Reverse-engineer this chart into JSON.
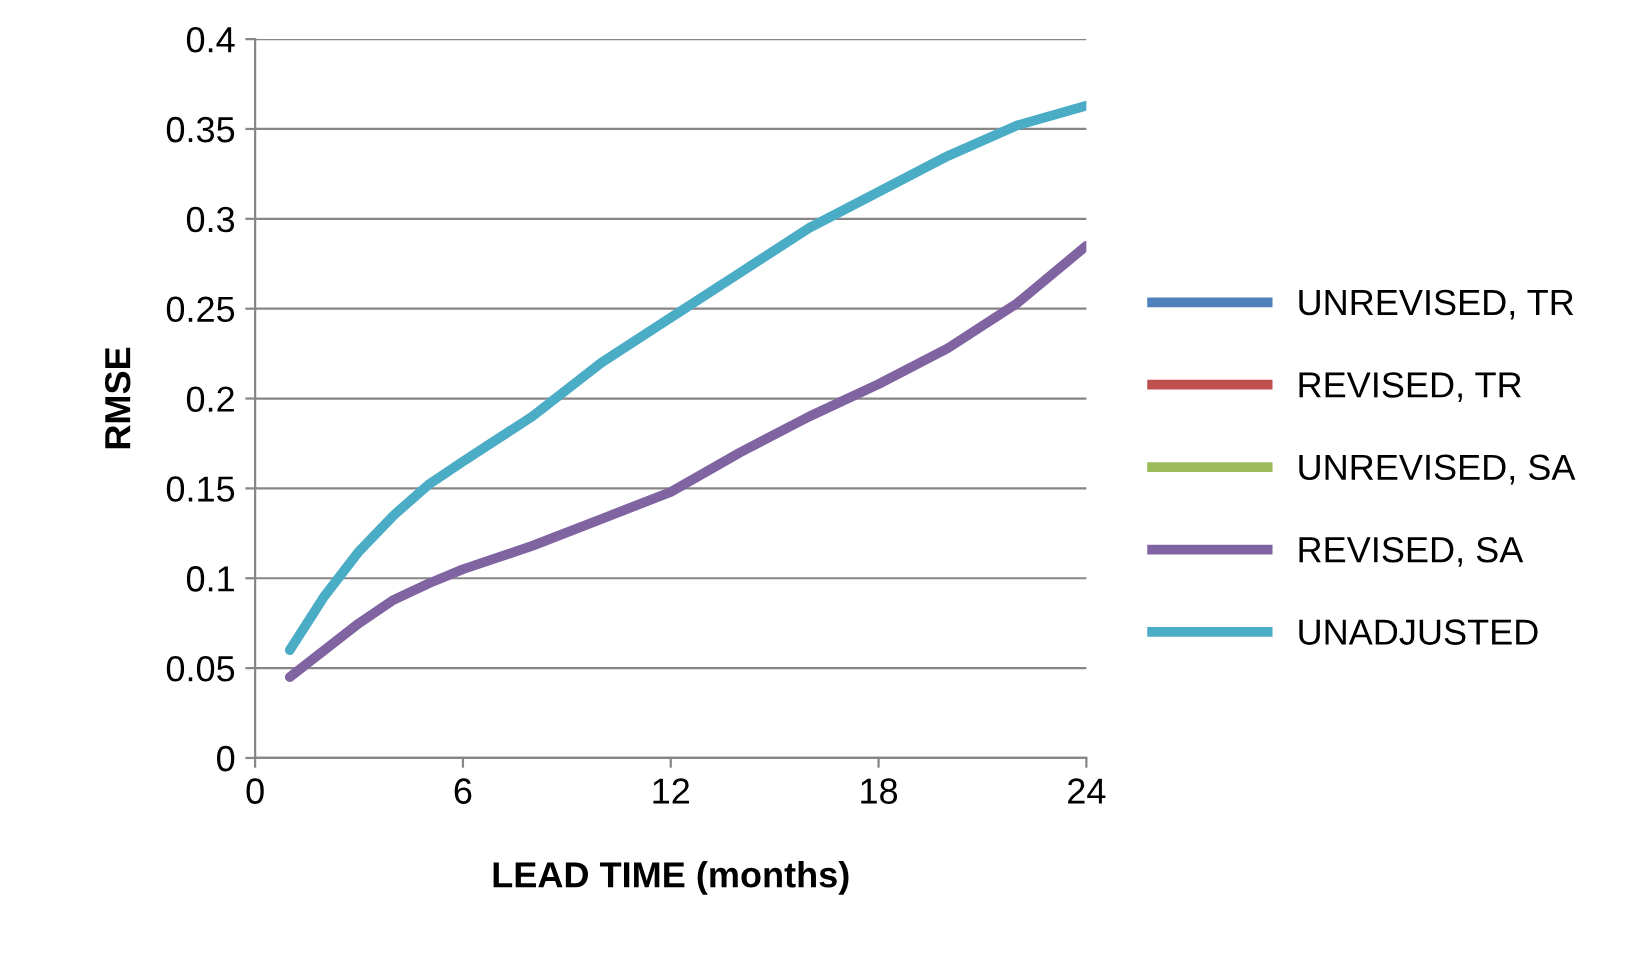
{
  "chart_data": {
    "type": "line",
    "xlabel": "LEAD TIME (months)",
    "ylabel": "RMSE",
    "xlim": [
      0,
      24
    ],
    "xticks": [
      0,
      6,
      12,
      18,
      24
    ],
    "ylim": [
      0,
      0.4
    ],
    "yticks": [
      0,
      0.05,
      0.1,
      0.15,
      0.2,
      0.25,
      0.3,
      0.35,
      0.4
    ],
    "grid": "y",
    "legend": "right",
    "line_style": "solid",
    "marker": "none",
    "x": [
      1,
      2,
      3,
      4,
      5,
      6,
      8,
      10,
      12,
      14,
      16,
      18,
      20,
      22,
      24
    ],
    "series": [
      {
        "name": "UNREVISED, TR",
        "color": "#4f81bd",
        "values": [
          null,
          null,
          null,
          null,
          null,
          null,
          null,
          null,
          null,
          null,
          null,
          null,
          null,
          null,
          null
        ]
      },
      {
        "name": "REVISED, TR",
        "color": "#c0504d",
        "values": [
          null,
          null,
          null,
          null,
          null,
          null,
          null,
          null,
          null,
          null,
          null,
          null,
          null,
          null,
          null
        ]
      },
      {
        "name": "UNREVISED, SA",
        "color": "#9bbb59",
        "values": [
          null,
          null,
          null,
          null,
          null,
          null,
          null,
          null,
          null,
          null,
          null,
          null,
          null,
          null,
          null
        ]
      },
      {
        "name": "REVISED, SA",
        "color": "#8064a2",
        "values": [
          0.045,
          0.06,
          0.075,
          0.088,
          0.097,
          0.105,
          0.118,
          0.133,
          0.148,
          0.17,
          0.19,
          0.208,
          0.228,
          0.253,
          0.285
        ]
      },
      {
        "name": "UNADJUSTED",
        "color": "#4bacc6",
        "values": [
          0.06,
          0.09,
          0.115,
          0.135,
          0.152,
          0.165,
          0.19,
          0.22,
          0.245,
          0.27,
          0.295,
          0.315,
          0.335,
          0.352,
          0.363
        ]
      }
    ]
  }
}
